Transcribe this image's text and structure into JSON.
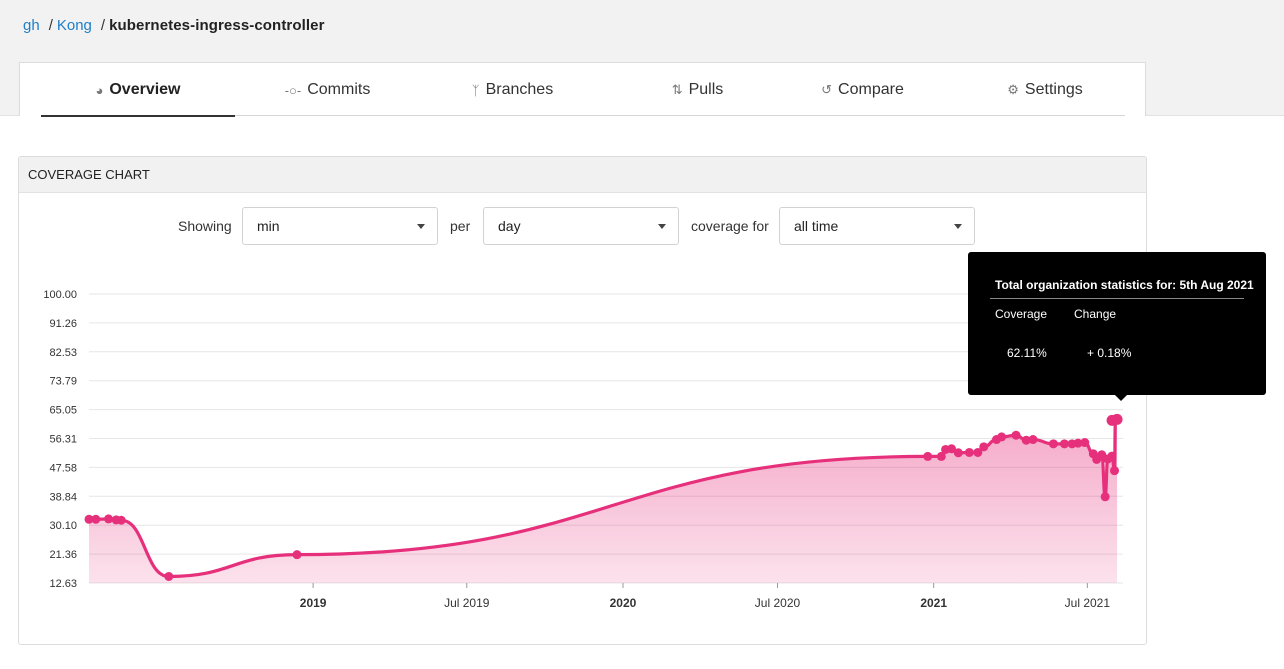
{
  "breadcrumb": {
    "service": "gh",
    "sep1": "/",
    "org": "Kong",
    "sep2": "/",
    "repo": "kubernetes-ingress-controller"
  },
  "tabs": [
    {
      "label": "Overview",
      "icon": "gauge-icon",
      "active": true
    },
    {
      "label": "Commits",
      "icon": "commit-icon"
    },
    {
      "label": "Branches",
      "icon": "branch-icon"
    },
    {
      "label": "Pulls",
      "icon": "pull-request-icon"
    },
    {
      "label": "Compare",
      "icon": "compare-icon"
    },
    {
      "label": "Settings",
      "icon": "gear-icon"
    }
  ],
  "coverage_card": {
    "title": "COVERAGE CHART",
    "showing_label": "Showing",
    "showing_value": "min",
    "per_label": "per",
    "per_value": "day",
    "coverage_for_label": "coverage for",
    "coverage_for_value": "all time"
  },
  "tooltip": {
    "title": "Total organization statistics for: 5th Aug 2021",
    "col1_header": "Coverage",
    "col2_header": "Change",
    "col1_value": "62.11%",
    "col2_value": "+ 0.18%"
  },
  "colors": {
    "accent": "#e6307b",
    "fill": "#f7c2d8",
    "link": "#1e7ec8"
  },
  "chart_data": {
    "type": "area",
    "title": "",
    "xlabel": "",
    "ylabel": "",
    "ylim": [
      12.63,
      100.0
    ],
    "yticks": [
      "100.00",
      "91.26",
      "82.53",
      "73.79",
      "65.05",
      "56.31",
      "47.58",
      "38.84",
      "30.10",
      "21.36",
      "12.63"
    ],
    "xticks": [
      {
        "label": "2019",
        "date": "2019-01-01",
        "bold": true
      },
      {
        "label": "Jul 2019",
        "date": "2019-07-01",
        "bold": false
      },
      {
        "label": "2020",
        "date": "2020-01-01",
        "bold": true
      },
      {
        "label": "Jul 2020",
        "date": "2020-07-01",
        "bold": false
      },
      {
        "label": "2021",
        "date": "2021-01-01",
        "bold": true
      },
      {
        "label": "Jul 2021",
        "date": "2021-07-01",
        "bold": false
      }
    ],
    "xlim": [
      "2018-04-12",
      "2021-08-12"
    ],
    "grid": true,
    "series": [
      {
        "points": [
          [
            "2018-04-12",
            31.9
          ],
          [
            "2018-04-20",
            31.9
          ],
          [
            "2018-05-05",
            32.0
          ],
          [
            "2018-05-14",
            31.7
          ],
          [
            "2018-05-20",
            31.6
          ],
          [
            "2018-07-15",
            14.6
          ],
          [
            "2018-12-13",
            21.2
          ],
          [
            "2020-12-25",
            50.9
          ],
          [
            "2021-01-10",
            50.9
          ],
          [
            "2021-01-15",
            53.0
          ],
          [
            "2021-01-22",
            53.2
          ],
          [
            "2021-01-30",
            52.0
          ],
          [
            "2021-02-12",
            52.1
          ],
          [
            "2021-02-22",
            52.1
          ],
          [
            "2021-03-01",
            53.8
          ],
          [
            "2021-03-16",
            56.0
          ],
          [
            "2021-03-22",
            56.8
          ],
          [
            "2021-04-08",
            57.3
          ],
          [
            "2021-04-20",
            55.8
          ],
          [
            "2021-04-28",
            56.0
          ],
          [
            "2021-05-22",
            54.7
          ],
          [
            "2021-06-04",
            54.7
          ],
          [
            "2021-06-13",
            54.7
          ],
          [
            "2021-06-20",
            54.9
          ],
          [
            "2021-06-28",
            55.1
          ],
          [
            "2021-07-08",
            51.7
          ],
          [
            "2021-07-12",
            50.0
          ],
          [
            "2021-07-18",
            51.4
          ],
          [
            "2021-07-22",
            38.7
          ],
          [
            "2021-07-25",
            50.1
          ],
          [
            "2021-07-30",
            51.0
          ],
          [
            "2021-08-02",
            46.6
          ],
          [
            "2021-08-03",
            61.8
          ],
          [
            "2021-08-05",
            62.11
          ]
        ]
      }
    ]
  }
}
